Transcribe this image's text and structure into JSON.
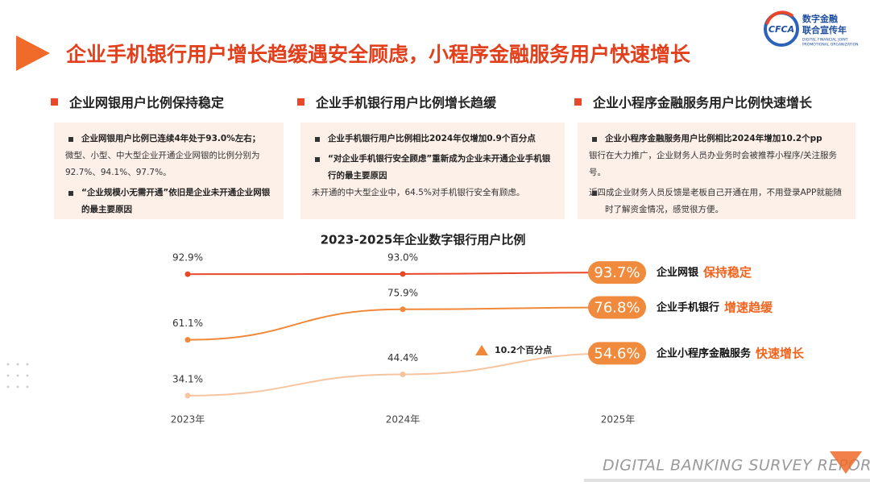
{
  "header": {
    "title": "企业手机银行用户增长趋缓遇安全顾虑，小程序金融服务用户快速增长",
    "logo": {
      "abbr": "CFCA",
      "name_line1": "数字金融",
      "name_line2": "联合宣传年",
      "en_line1": "DIGITAL FINANCIAL JOINT",
      "en_line2": "PROMOTIONAL ORGANIZATION"
    }
  },
  "panels": [
    {
      "heading": "企业网银用户比例保持稳定",
      "items": [
        {
          "bold": "企业网银用户比例已连续4年处于93.0%左右；",
          "text": "微型、小型、中大型企业开通企业网银的比例分别为92.7%、94.1%、97.7%。"
        },
        {
          "bold": "“企业规模小无需开通”依旧是企业未开通企业网银的最主要原因"
        }
      ]
    },
    {
      "heading": "企业手机银行用户比例增长趋缓",
      "items": [
        {
          "bold": "企业手机银行用户比例相比2024年仅增加0.9个百分点"
        },
        {
          "bold": "“对企业手机银行安全顾虑”重新成为企业未开通企业手机银行的最主要原因",
          "text": "未开通的中大型企业中，64.5%对手机银行安全有顾虑。"
        }
      ]
    },
    {
      "heading": "企业小程序金融服务用户比例快速增长",
      "items": [
        {
          "bold": "企业小程序金融服务用户比例相比2024年增加10.2个pp",
          "text": "银行在大力推广，企业财务人员办业务时会被推荐小程序/关注服务号。"
        },
        {
          "text": "近四成企业财务人员反馈是老板自己开通在用，不用登录APP就能随时了解资金情况，感觉很方便。"
        }
      ]
    }
  ],
  "chart_data": {
    "type": "line",
    "title": "2023-2025年企业数字银行用户比例",
    "categories": [
      "2023年",
      "2024年",
      "2025年"
    ],
    "ylim": [
      20,
      100
    ],
    "series": [
      {
        "name": "企业网银",
        "tag": "保持稳定",
        "color": "#e8472a",
        "values": [
          92.9,
          93.0,
          93.7
        ],
        "value_labels": [
          "92.9%",
          "93.0%",
          "93.7%"
        ]
      },
      {
        "name": "企业手机银行",
        "tag": "增速趋缓",
        "color": "#f0883a",
        "values": [
          61.1,
          75.9,
          76.8
        ],
        "value_labels": [
          "61.1%",
          "75.9%",
          "76.8%"
        ]
      },
      {
        "name": "企业小程序金融服务",
        "tag": "快速增长",
        "color": "#f7c4a0",
        "values": [
          34.1,
          44.4,
          54.6
        ],
        "value_labels": [
          "34.1%",
          "44.4%",
          "54.6%"
        ]
      }
    ],
    "annotation": "10.2个百分点"
  },
  "footer": "DIGITAL BANKING SURVEY REPORT"
}
